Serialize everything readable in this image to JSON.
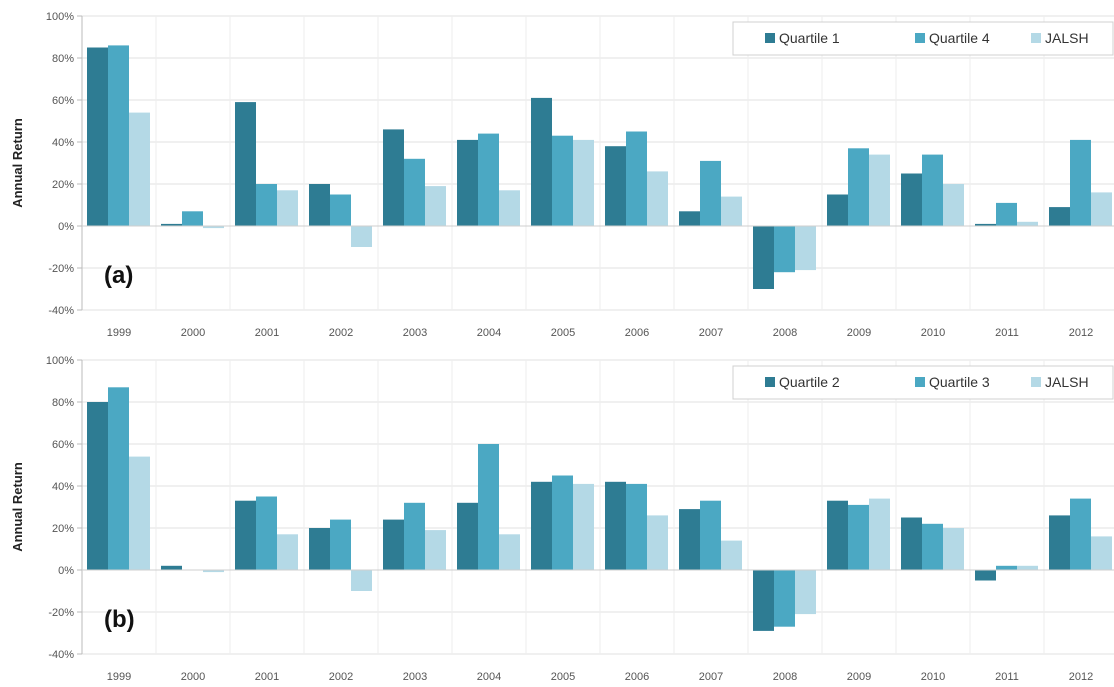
{
  "chart_data": [
    {
      "type": "bar",
      "panel_label": "(a)",
      "ylabel": "Annual Return",
      "ylim": [
        -40,
        100
      ],
      "yticks": [
        "-40%",
        "-20%",
        "0%",
        "20%",
        "40%",
        "60%",
        "80%",
        "100%"
      ],
      "categories": [
        "1999",
        "2000",
        "2001",
        "2002",
        "2003",
        "2004",
        "2005",
        "2006",
        "2007",
        "2008",
        "2009",
        "2010",
        "2011",
        "2012"
      ],
      "legend_position": "top-right",
      "grid": true,
      "series": [
        {
          "name": "Quartile 1",
          "color": "#2E7C93",
          "values": [
            85,
            1,
            59,
            20,
            46,
            41,
            61,
            38,
            7,
            -30,
            15,
            25,
            1,
            9
          ]
        },
        {
          "name": "Quartile 4",
          "color": "#4BA8C3",
          "values": [
            86,
            7,
            20,
            15,
            32,
            44,
            43,
            45,
            31,
            -22,
            37,
            34,
            11,
            41
          ]
        },
        {
          "name": "JALSH",
          "color": "#B4D9E6",
          "values": [
            54,
            -1,
            17,
            -10,
            19,
            17,
            41,
            26,
            14,
            -21,
            34,
            20,
            2,
            16
          ]
        }
      ]
    },
    {
      "type": "bar",
      "panel_label": "(b)",
      "ylabel": "Annual Return",
      "ylim": [
        -40,
        100
      ],
      "yticks": [
        "-40%",
        "-20%",
        "0%",
        "20%",
        "40%",
        "60%",
        "80%",
        "100%"
      ],
      "categories": [
        "1999",
        "2000",
        "2001",
        "2002",
        "2003",
        "2004",
        "2005",
        "2006",
        "2007",
        "2008",
        "2009",
        "2010",
        "2011",
        "2012"
      ],
      "legend_position": "top-right",
      "grid": true,
      "series": [
        {
          "name": "Quartile 2",
          "color": "#2E7C93",
          "values": [
            80,
            2,
            33,
            20,
            24,
            32,
            42,
            42,
            29,
            -29,
            33,
            25,
            -5,
            26
          ]
        },
        {
          "name": "Quartile 3",
          "color": "#4BA8C3",
          "values": [
            87,
            0,
            35,
            24,
            32,
            60,
            45,
            41,
            33,
            -27,
            31,
            22,
            2,
            34
          ]
        },
        {
          "name": "JALSH",
          "color": "#B4D9E6",
          "values": [
            54,
            -1,
            17,
            -10,
            19,
            17,
            41,
            26,
            14,
            -21,
            34,
            20,
            2,
            16
          ]
        }
      ]
    }
  ]
}
